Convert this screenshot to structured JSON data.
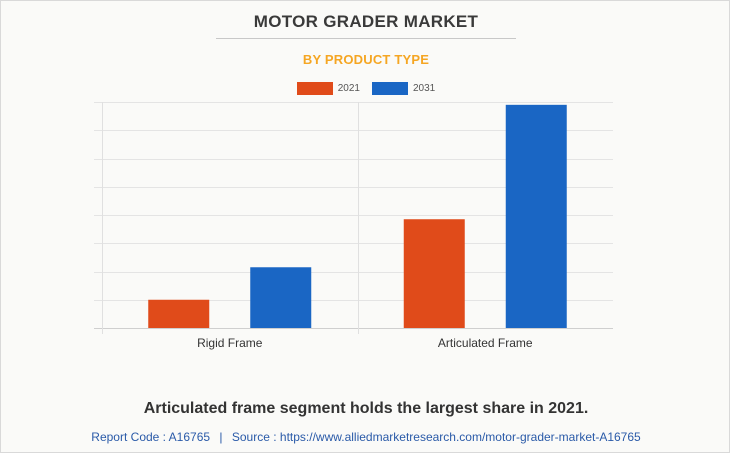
{
  "chart_data": {
    "type": "bar",
    "title": "MOTOR GRADER MARKET",
    "subtitle": "BY PRODUCT TYPE",
    "categories": [
      "Rigid Frame",
      "Articulated Frame"
    ],
    "series": [
      {
        "name": "2021",
        "color": "#e04b1a",
        "values": [
          1.0,
          3.85
        ]
      },
      {
        "name": "2031",
        "color": "#1a66c4",
        "values": [
          2.15,
          7.9
        ]
      }
    ],
    "xlabel": "",
    "ylabel": "",
    "ylim": [
      0,
      8
    ],
    "y_gridlines": 8,
    "y_tick_labels_shown": false,
    "grid": true,
    "legend_position": "top-center"
  },
  "caption": "Articulated frame segment holds the largest share in 2021.",
  "footer": {
    "report_code": "Report Code : A16765",
    "separator": "|",
    "source": "Source : https://www.alliedmarketresearch.com/motor-grader-market-A16765"
  }
}
